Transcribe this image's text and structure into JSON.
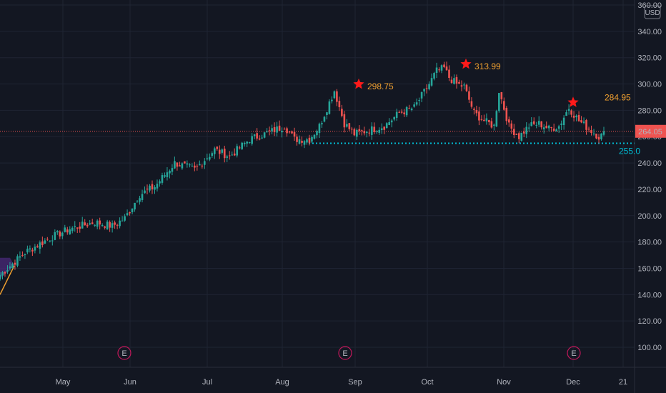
{
  "colors": {
    "background": "#131722",
    "grid": "#1f2433",
    "up": "#26a69a",
    "down": "#ef5350",
    "annotation": "#f0a030",
    "support": "#00bcd4",
    "star": "#ff1a1a",
    "earnings": "#c2185b",
    "price_line": "#ef5350",
    "trend": "#f0a030",
    "pattern_box": "#4a2a7a"
  },
  "chart_data": {
    "type": "candlestick",
    "currency": "USD",
    "y_ticks": [
      "100.00",
      "120.00",
      "140.00",
      "160.00",
      "180.00",
      "200.00",
      "220.00",
      "240.00",
      "260.00",
      "280.00",
      "300.00",
      "320.00",
      "340.00",
      "360.00"
    ],
    "ylim": [
      85,
      360
    ],
    "x_ticks": [
      "May",
      "Jun",
      "Jul",
      "Aug",
      "Sep",
      "Oct",
      "Nov",
      "Dec",
      "21"
    ],
    "current_price": "264.05",
    "support_level": 255,
    "support_label": "255.0",
    "annotations": [
      {
        "label": "298.75",
        "value": 298.75,
        "marker": "star"
      },
      {
        "label": "313.99",
        "value": 313.99,
        "marker": "star"
      },
      {
        "label": "284.95",
        "value": 284.95,
        "marker": "star"
      }
    ],
    "earnings_markers": [
      "E",
      "E",
      "E"
    ],
    "anchors": [
      [
        0,
        155
      ],
      [
        10,
        172
      ],
      [
        20,
        183
      ],
      [
        28,
        190
      ],
      [
        38,
        195
      ],
      [
        45,
        192
      ],
      [
        50,
        198
      ],
      [
        56,
        216
      ],
      [
        62,
        222
      ],
      [
        70,
        240
      ],
      [
        78,
        235
      ],
      [
        86,
        250
      ],
      [
        92,
        245
      ],
      [
        100,
        258
      ],
      [
        106,
        262
      ],
      [
        114,
        268
      ],
      [
        118,
        258
      ],
      [
        124,
        258
      ],
      [
        128,
        268
      ],
      [
        134,
        295
      ],
      [
        138,
        270
      ],
      [
        142,
        262
      ],
      [
        148,
        265
      ],
      [
        154,
        268
      ],
      [
        160,
        278
      ],
      [
        166,
        282
      ],
      [
        172,
        300
      ],
      [
        175,
        310
      ],
      [
        178,
        312
      ],
      [
        180,
        305
      ],
      [
        183,
        300
      ],
      [
        186,
        298
      ],
      [
        190,
        278
      ],
      [
        194,
        272
      ],
      [
        198,
        268
      ],
      [
        200,
        295
      ],
      [
        204,
        268
      ],
      [
        208,
        260
      ],
      [
        212,
        268
      ],
      [
        216,
        270
      ],
      [
        220,
        266
      ],
      [
        224,
        268
      ],
      [
        228,
        282
      ],
      [
        232,
        272
      ],
      [
        236,
        266
      ],
      [
        240,
        260
      ],
      [
        242,
        262
      ]
    ]
  }
}
